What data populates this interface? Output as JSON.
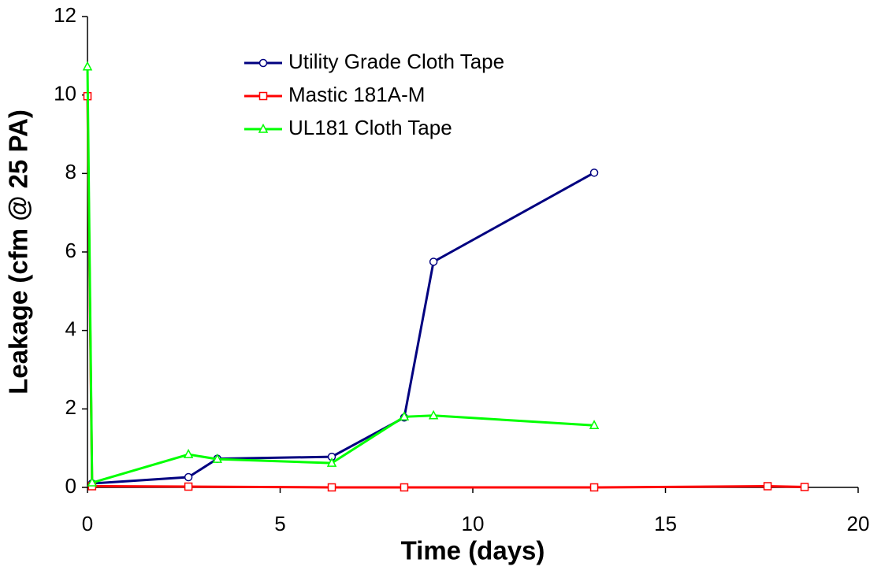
{
  "chart_data": {
    "type": "line",
    "xlabel": "Time (days)",
    "ylabel": "Leakage (cfm @ 25 PA)",
    "xlim": [
      0,
      20
    ],
    "xticks": [
      0,
      5,
      10,
      15,
      20
    ],
    "ylim": [
      0,
      12
    ],
    "yticks": [
      0,
      2,
      4,
      6,
      8,
      10,
      12
    ],
    "grid": false,
    "legend": "upper center",
    "series": [
      {
        "name": "Utility Grade Cloth Tape",
        "color": "#000080",
        "marker": "circle",
        "x": [
          0.12,
          2.62,
          3.37,
          6.34,
          8.22,
          8.98,
          13.15
        ],
        "values": [
          0.1,
          0.26,
          0.73,
          0.78,
          1.78,
          5.75,
          8.02
        ]
      },
      {
        "name": "Mastic 181A-M",
        "color": "#ff0000",
        "marker": "square",
        "x": [
          0,
          0.12,
          2.62,
          6.34,
          8.22,
          13.15,
          17.65,
          18.61
        ],
        "values": [
          9.97,
          0.03,
          0.02,
          0,
          0,
          0,
          0.03,
          0.01
        ]
      },
      {
        "name": "UL181 Cloth Tape",
        "color": "#00ff00",
        "marker": "triangle",
        "x": [
          0,
          0.12,
          2.62,
          3.37,
          6.34,
          8.22,
          8.98,
          13.15
        ],
        "values": [
          10.72,
          0.12,
          0.84,
          0.72,
          0.62,
          1.8,
          1.83,
          1.58
        ]
      }
    ]
  }
}
